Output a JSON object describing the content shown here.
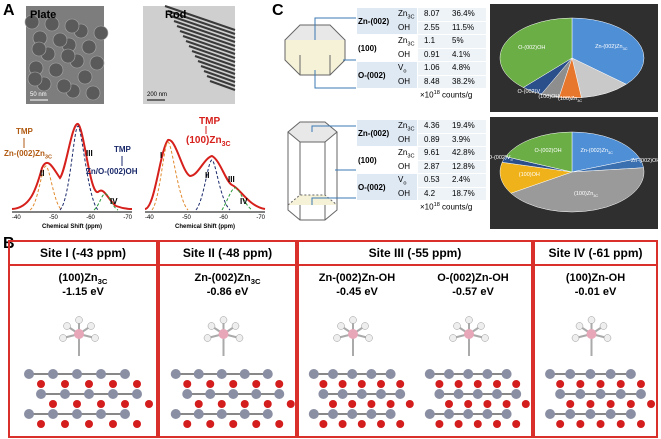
{
  "panel_a": {
    "label": "A",
    "plate": {
      "title": "Plate",
      "scale_bar": "50 nm"
    },
    "rod": {
      "title": "Rod",
      "scale_bar": "200 nm"
    },
    "plate_spectrum": {
      "peaks": [
        "II",
        "III",
        "IV"
      ],
      "tmp_left": "TMP",
      "zn_zn3c": {
        "main": "Zn-(002)Zn",
        "sub": "3C"
      },
      "tmp_right": "TMP",
      "zn_o_oh": "Zn/O-(002)OH",
      "xticks": [
        "-40",
        "-50",
        "-60",
        "-70"
      ],
      "xlabel": "Chemical Shift (ppm)"
    },
    "rod_spectrum": {
      "peaks": [
        "I",
        "II",
        "III",
        "IV"
      ],
      "tmp": "TMP",
      "zn3c": {
        "main": "(100)Zn",
        "sub": "3C"
      },
      "xticks": [
        "-40",
        "-50",
        "-60",
        "-70"
      ],
      "xlabel": "Chemical Shift (ppm)"
    }
  },
  "panel_c": {
    "label": "C",
    "tables": [
      {
        "groups": [
          {
            "facet": "Zn-(002)",
            "rows": [
              {
                "site": {
                  "main": "Zn",
                  "sub": "3C"
                },
                "amount": "8.07",
                "percent": "36.4%"
              },
              {
                "site": {
                  "main": "OH"
                },
                "amount": "2.55",
                "percent": "11.5%"
              }
            ]
          },
          {
            "facet": "(100)",
            "rows": [
              {
                "site": {
                  "main": "Zn",
                  "sub": "3C"
                },
                "amount": "1.1",
                "percent": "5%"
              },
              {
                "site": {
                  "main": "OH"
                },
                "amount": "0.91",
                "percent": "4.1%"
              }
            ]
          },
          {
            "facet": "O-(002)",
            "rows": [
              {
                "site": {
                  "main": "V",
                  "sub": "o"
                },
                "amount": "1.06",
                "percent": "4.8%"
              },
              {
                "site": {
                  "main": "OH"
                },
                "amount": "8.48",
                "percent": "38.2%"
              }
            ]
          }
        ],
        "unit": {
          "main": "×10",
          "sup": "18",
          "tail": " counts/g"
        },
        "pie_labels": [
          {
            "main": "Zn-(002)Zn",
            "sub": "3C"
          },
          null,
          {
            "main": "(100)Zn",
            "sub": "3C"
          },
          {
            "main": "(100)OH"
          },
          {
            "main": "O-(002)V",
            "sub": "o"
          },
          {
            "main": "O-(002)OH"
          }
        ],
        "colors": [
          "#4f8fd6",
          "#c9c9c9",
          "#e8772e",
          "#8e8e8e",
          "#2a4f8a",
          "#6aae45"
        ]
      },
      {
        "groups": [
          {
            "facet": "Zn-(002)",
            "rows": [
              {
                "site": {
                  "main": "Zn",
                  "sub": "3C"
                },
                "amount": "4.36",
                "percent": "19.4%"
              },
              {
                "site": {
                  "main": "OH"
                },
                "amount": "0.89",
                "percent": "3.9%"
              }
            ]
          },
          {
            "facet": "(100)",
            "rows": [
              {
                "site": {
                  "main": "Zn",
                  "sub": "3C"
                },
                "amount": "9.61",
                "percent": "42.8%"
              },
              {
                "site": {
                  "main": "OH"
                },
                "amount": "2.87",
                "percent": "12.8%"
              }
            ]
          },
          {
            "facet": "O-(002)",
            "rows": [
              {
                "site": {
                  "main": "V",
                  "sub": "o"
                },
                "amount": "0.53",
                "percent": "2.4%"
              },
              {
                "site": {
                  "main": "OH"
                },
                "amount": "4.2",
                "percent": "18.7%"
              }
            ]
          }
        ],
        "unit": {
          "main": "×10",
          "sup": "18",
          "tail": " counts/g"
        },
        "pie_labels": [
          {
            "main": "Zn-(002)Zn",
            "sub": "3C"
          },
          {
            "main": "Zn-(002)OH"
          },
          {
            "main": "(100)Zn",
            "sub": "3C"
          },
          {
            "main": "(100)OH"
          },
          {
            "main": "O-(002)V",
            "sub": "o"
          },
          {
            "main": "O-(002)OH"
          }
        ],
        "colors": [
          "#4f8fd6",
          "#3a6fb0",
          "#9a9a9a",
          "#f0b21a",
          "#2a4f8a",
          "#6aae45"
        ]
      }
    ]
  },
  "panel_b": {
    "label": "B",
    "sites": [
      {
        "title": "Site I (-43 ppm)",
        "structures": [
          {
            "name": {
              "main": "(100)Zn",
              "sub": "3C"
            },
            "energy": "-1.15 eV"
          }
        ]
      },
      {
        "title": "Site II (-48 ppm)",
        "structures": [
          {
            "name": {
              "main": "Zn-(002)Zn",
              "sub": "3C"
            },
            "energy": "-0.86 eV"
          }
        ]
      },
      {
        "title": "Site III (-55 ppm)",
        "structures": [
          {
            "name": {
              "main": "Zn-(002)Zn-OH"
            },
            "energy": "-0.45 eV"
          },
          {
            "name": {
              "main": "O-(002)Zn-OH"
            },
            "energy": "-0.57 eV"
          }
        ]
      },
      {
        "title": "Site IV (-61 ppm)",
        "structures": [
          {
            "name": {
              "main": "(100)Zn-OH"
            },
            "energy": "-0.01 eV"
          }
        ]
      }
    ]
  }
}
